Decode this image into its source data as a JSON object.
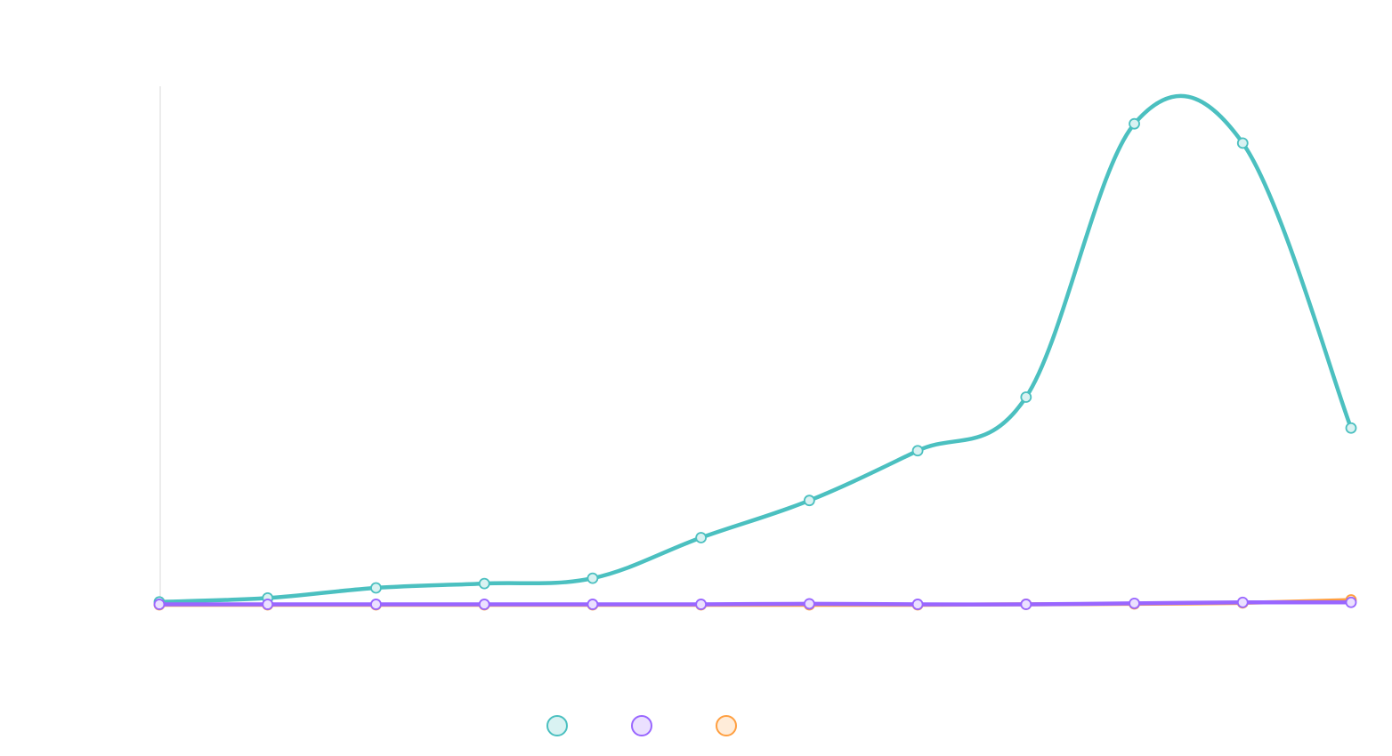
{
  "chart_data": {
    "type": "line",
    "title": "",
    "xlabel": "",
    "ylabel": "",
    "categories": [
      "",
      "",
      "",
      "",
      "",
      "",
      "",
      "",
      "",
      "",
      "",
      ""
    ],
    "ylim": [
      0,
      100
    ],
    "grid": false,
    "legend_position": "bottom",
    "series": [
      {
        "color": "#4bc0c0",
        "fill": "#d9f2f2",
        "values": [
          0.6,
          1.4,
          3.5,
          4.4,
          5.5,
          13.9,
          21.6,
          31.9,
          43.0,
          99.6,
          95.6,
          36.6
        ]
      },
      {
        "color": "#9966ff",
        "fill": "#ebe0ff",
        "values": [
          0.1,
          0.1,
          0.1,
          0.1,
          0.1,
          0.1,
          0.2,
          0.1,
          0.1,
          0.3,
          0.5,
          0.5
        ]
      },
      {
        "color": "#ff9f40",
        "fill": "#ffecd9",
        "values": [
          0.0,
          0.0,
          0.0,
          0.0,
          0.0,
          0.0,
          0.0,
          0.0,
          0.1,
          0.2,
          0.4,
          1.0
        ]
      }
    ]
  }
}
